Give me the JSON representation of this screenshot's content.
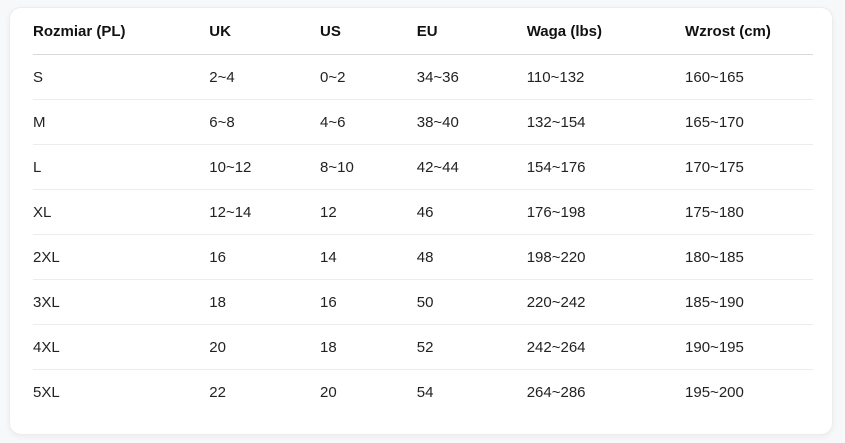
{
  "table": {
    "title": "size-conversion-chart",
    "columns": [
      "Rozmiar (PL)",
      "UK",
      "US",
      "EU",
      "Waga (lbs)",
      "Wzrost (cm)"
    ],
    "rows": [
      [
        "S",
        "2~4",
        "0~2",
        "34~36",
        "110~132",
        "160~165"
      ],
      [
        "M",
        "6~8",
        "4~6",
        "38~40",
        "132~154",
        "165~170"
      ],
      [
        "L",
        "10~12",
        "8~10",
        "42~44",
        "154~176",
        "170~175"
      ],
      [
        "XL",
        "12~14",
        "12",
        "46",
        "176~198",
        "175~180"
      ],
      [
        "2XL",
        "16",
        "14",
        "48",
        "198~220",
        "180~185"
      ],
      [
        "3XL",
        "18",
        "16",
        "50",
        "220~242",
        "185~190"
      ],
      [
        "4XL",
        "20",
        "18",
        "52",
        "242~264",
        "190~195"
      ],
      [
        "5XL",
        "22",
        "20",
        "54",
        "264~286",
        "195~200"
      ]
    ],
    "colors": {
      "page_background": "#f7f8fa",
      "card_background": "#ffffff",
      "card_border": "#ededed",
      "header_text": "#111111",
      "body_text": "#222222",
      "header_divider": "#d9d9d9",
      "row_divider": "#ececec"
    }
  }
}
